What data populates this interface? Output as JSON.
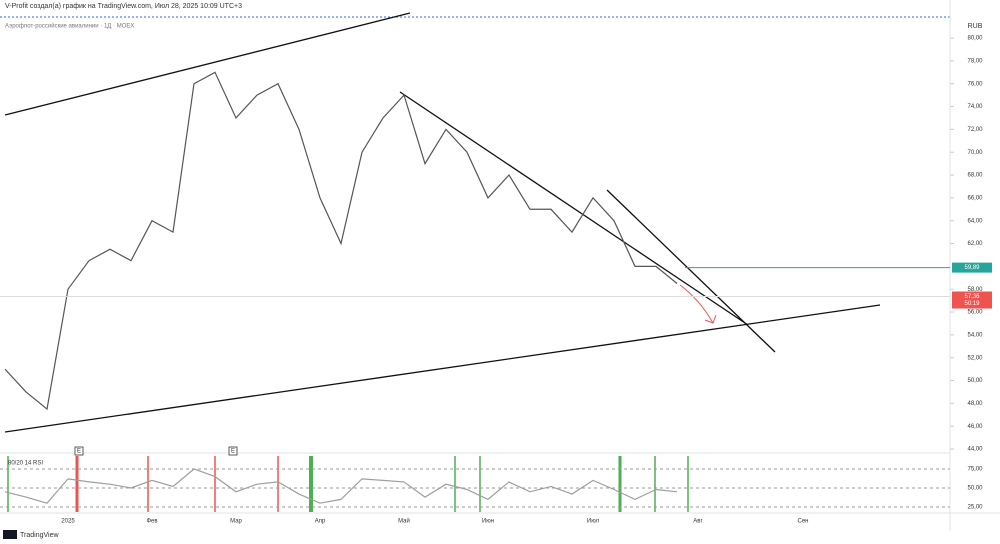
{
  "header": {
    "title": "V-Profit создал(а) график на TradingView.com, Июл 28, 2025 10:09 UTC+3",
    "subtitle": "Аэрофлот-российские авиалинии · 1Д · MOEX",
    "currency": "RUB",
    "brand": "TradingView"
  },
  "chart_data": [
    {
      "type": "line",
      "color": "#555555",
      "categories": [
        null,
        null,
        null,
        "2025",
        null,
        null,
        null,
        "Фев",
        null,
        null,
        null,
        "Мар",
        null,
        null,
        null,
        "Апр",
        null,
        null,
        null,
        "Май",
        null,
        null,
        null,
        "Июн",
        null,
        null,
        null,
        null,
        "Июл",
        null,
        null,
        null,
        null,
        "Авг",
        null,
        null,
        null,
        null,
        "Сен",
        null,
        null,
        null,
        null,
        null,
        null
      ],
      "values": [
        51,
        49,
        47.5,
        58,
        60.5,
        61.5,
        60.5,
        64,
        63,
        76,
        77,
        73,
        75,
        76,
        72,
        66,
        62,
        70,
        73,
        75,
        69,
        72,
        70,
        66,
        68,
        65,
        65,
        63,
        66,
        64,
        60,
        60,
        58.5,
        null,
        null,
        null,
        null,
        null,
        null,
        null,
        null,
        null,
        null,
        null,
        null
      ],
      "ylim": [
        43.74,
        81.58
      ],
      "yticks": [
        {
          "value": 80,
          "label": "80,00"
        },
        {
          "value": 78,
          "label": "78,00"
        },
        {
          "value": 76,
          "label": "76,00"
        },
        {
          "value": 74,
          "label": "74,00"
        },
        {
          "value": 72,
          "label": "72,00"
        },
        {
          "value": 70,
          "label": "70,00"
        },
        {
          "value": 68,
          "label": "68,00"
        },
        {
          "value": 66,
          "label": "66,00"
        },
        {
          "value": 64,
          "label": "64,00"
        },
        {
          "value": 62,
          "label": "62,00"
        },
        {
          "value": 58,
          "label": "58,00"
        },
        {
          "value": 56,
          "label": "56,00"
        },
        {
          "value": 54,
          "label": "54,00"
        },
        {
          "value": 52,
          "label": "52,00"
        },
        {
          "value": 50,
          "label": "50,00"
        },
        {
          "value": 48,
          "label": "48,00"
        },
        {
          "value": 46,
          "label": "46,00"
        },
        {
          "value": 44,
          "label": "44,00"
        }
      ],
      "hline": {
        "value": 59.89,
        "label": "59,89",
        "color": "#26a69a"
      },
      "last_price": {
        "value": 57.36,
        "label": "57,36",
        "color": "#ef5350"
      },
      "countdown": "50:19",
      "events": [
        "E",
        "E"
      ]
    },
    {
      "type": "line",
      "title": "80/20 14 RSI",
      "color": "#9e9e9e",
      "values": [
        45,
        38,
        30,
        62,
        58,
        55,
        50,
        60,
        52,
        75,
        65,
        45,
        55,
        58,
        42,
        30,
        35,
        62,
        60,
        58,
        38,
        55,
        48,
        35,
        58,
        45,
        52,
        42,
        60,
        48,
        35,
        48,
        45,
        null,
        null,
        null,
        null,
        null,
        null,
        null,
        null,
        null,
        null,
        null,
        null
      ],
      "ylim": [
        18.4,
        93.4
      ],
      "yticks": [
        {
          "value": 75,
          "label": "75,00"
        },
        {
          "value": 50,
          "label": "50,00"
        },
        {
          "value": 25,
          "label": "25,00"
        }
      ]
    }
  ]
}
